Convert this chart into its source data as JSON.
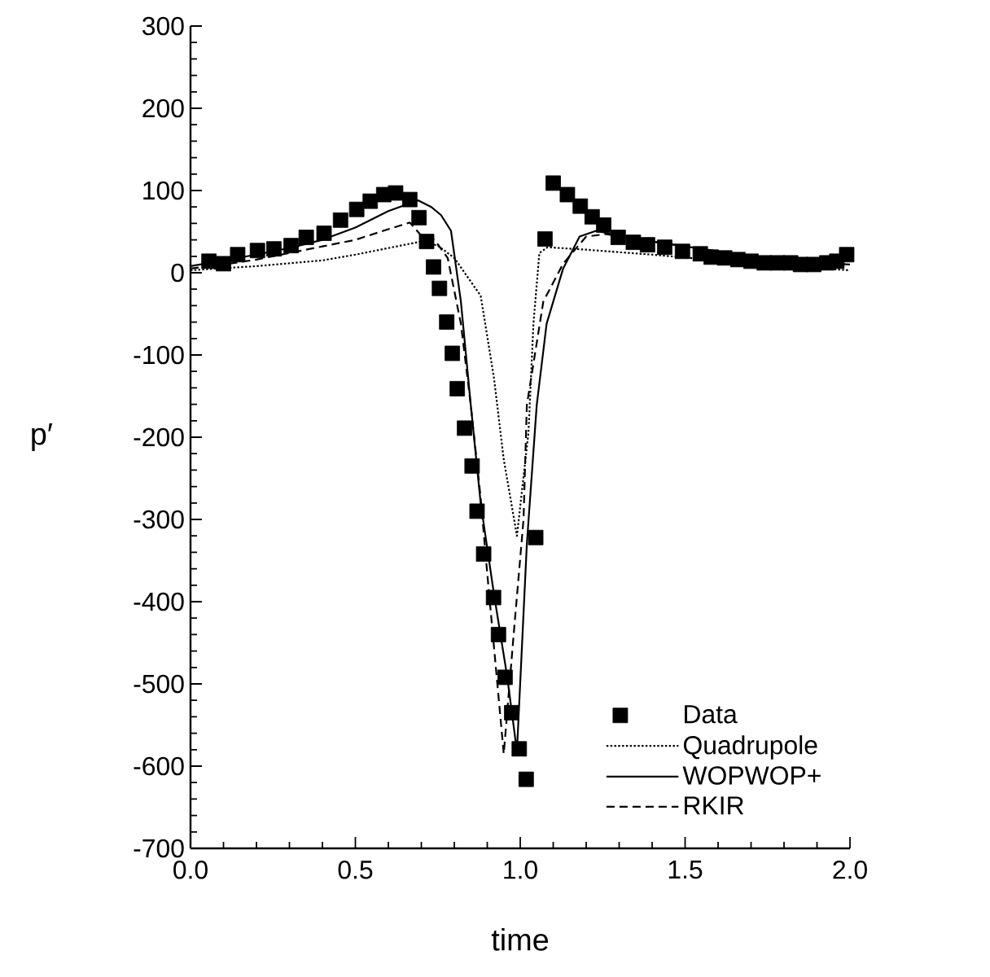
{
  "chart_data": {
    "type": "line",
    "xlabel": "time",
    "ylabel": "p′",
    "xlim": [
      0,
      2
    ],
    "ylim": [
      -700,
      300
    ],
    "xticks": [
      {
        "value": 0,
        "label": "0.0"
      },
      {
        "value": 0.5,
        "label": "0.5"
      },
      {
        "value": 1,
        "label": "1.0"
      },
      {
        "value": 1.5,
        "label": "1.5"
      },
      {
        "value": 2,
        "label": "2.0"
      }
    ],
    "yticks": [
      -700,
      -600,
      -500,
      -400,
      -300,
      -200,
      -100,
      0,
      100,
      200,
      300
    ],
    "grid": false,
    "legend": "bottom right",
    "series": [
      {
        "name": "Data",
        "type": "scatter",
        "marker": "square",
        "color": "#000000",
        "x": [
          0.056,
          0.1,
          0.143,
          0.203,
          0.253,
          0.305,
          0.351,
          0.405,
          0.455,
          0.504,
          0.545,
          0.586,
          0.622,
          0.665,
          0.693,
          0.716,
          0.737,
          0.755,
          0.777,
          0.794,
          0.809,
          0.831,
          0.854,
          0.869,
          0.889,
          0.919,
          0.934,
          0.954,
          0.974,
          0.997,
          1.018,
          1.047,
          1.075,
          1.1,
          1.143,
          1.182,
          1.218,
          1.253,
          1.297,
          1.343,
          1.386,
          1.438,
          1.492,
          1.546,
          1.579,
          1.62,
          1.66,
          1.7,
          1.74,
          1.78,
          1.82,
          1.85,
          1.89,
          1.93,
          1.96,
          1.99
        ],
        "values": [
          14,
          11,
          22,
          27,
          29,
          33,
          43,
          48,
          64,
          77,
          87,
          95,
          97,
          89,
          67,
          38,
          7,
          -19,
          -60,
          -98,
          -141,
          -189,
          -235,
          -290,
          -342,
          -395,
          -440,
          -492,
          -535,
          -579,
          -616,
          -322,
          41,
          109,
          95,
          81,
          68,
          58,
          43,
          37,
          34,
          31,
          26,
          23,
          19,
          18,
          16,
          14,
          12,
          12,
          12,
          10,
          10,
          12,
          14,
          22
        ]
      },
      {
        "name": "Quadrupole",
        "line_style": "dotted",
        "color": "#000000",
        "x": [
          0,
          0.2,
          0.4,
          0.5,
          0.6,
          0.7,
          0.75,
          0.8,
          0.84,
          0.88,
          0.92,
          0.95,
          0.99,
          1.025,
          1.04,
          1.058,
          1.083,
          1.2,
          1.4,
          1.6,
          1.8,
          2.0
        ],
        "values": [
          3,
          8,
          15,
          22,
          30,
          38,
          33,
          18,
          -5,
          -28,
          -127,
          -227,
          -320,
          -194,
          -62,
          24,
          31,
          28,
          22,
          15,
          8,
          3
        ]
      },
      {
        "name": "WOPWOP+",
        "line_style": "solid",
        "color": "#000000",
        "x": [
          0,
          0.1,
          0.2,
          0.3,
          0.4,
          0.5,
          0.6,
          0.69,
          0.73,
          0.76,
          0.79,
          0.82,
          0.85,
          0.88,
          0.92,
          0.96,
          0.99,
          1.02,
          1.05,
          1.08,
          1.13,
          1.18,
          1.23,
          1.3,
          1.4,
          1.5,
          1.6,
          1.7,
          1.8,
          1.9,
          2.0
        ],
        "values": [
          8,
          15,
          22,
          30,
          40,
          55,
          75,
          88,
          80,
          70,
          51,
          -35,
          -161,
          -280,
          -390,
          -490,
          -582,
          -330,
          -161,
          -62,
          5,
          44,
          51,
          45,
          38,
          32,
          26,
          20,
          15,
          12,
          10
        ]
      },
      {
        "name": "RKIR",
        "line_style": "dashed",
        "color": "#000000",
        "x": [
          0,
          0.1,
          0.2,
          0.3,
          0.4,
          0.5,
          0.6,
          0.665,
          0.7,
          0.74,
          0.78,
          0.82,
          0.85,
          0.88,
          0.9,
          0.95,
          0.98,
          1.01,
          1.02,
          1.07,
          1.13,
          1.2,
          1.26,
          1.3,
          1.4,
          1.5,
          1.6,
          1.7,
          1.8,
          1.9,
          2.0
        ],
        "values": [
          5,
          10,
          16,
          24,
          32,
          40,
          53,
          61,
          45,
          40,
          18,
          -62,
          -161,
          -274,
          -366,
          -585,
          -440,
          -300,
          -161,
          -35,
          11,
          44,
          47,
          44,
          38,
          32,
          26,
          20,
          15,
          12,
          10
        ]
      }
    ]
  }
}
